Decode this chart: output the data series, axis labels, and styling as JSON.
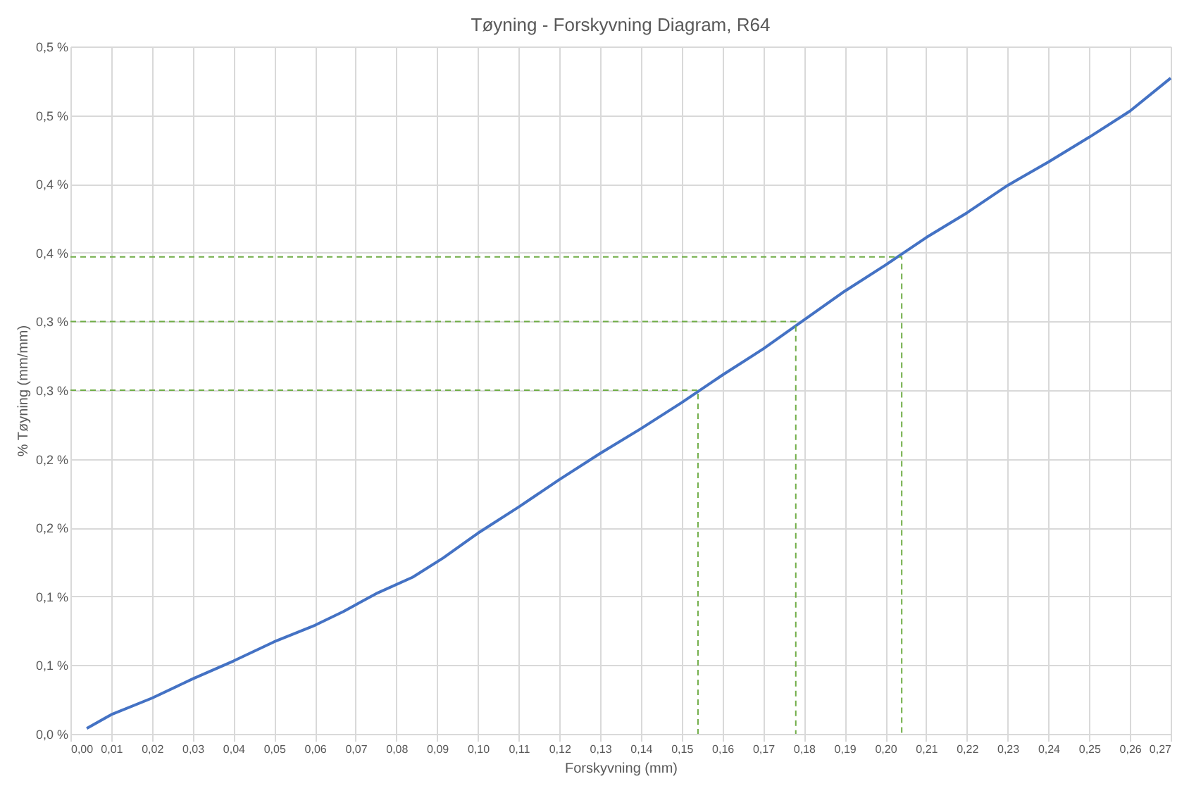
{
  "chart_data": {
    "type": "line",
    "title": "Tøyning - Forskyvning Diagram, R64",
    "xlabel": "Forskyvning (mm)",
    "ylabel": "% Tøyning (mm/mm)",
    "series": [
      {
        "color": "#4472c4",
        "x": [
          0.004,
          0.01,
          0.02,
          0.03,
          0.04,
          0.05,
          0.06,
          0.067,
          0.075,
          0.084,
          0.0915,
          0.1,
          0.11,
          0.12,
          0.13,
          0.14,
          0.15,
          0.16,
          0.17,
          0.18,
          0.19,
          0.2,
          0.21,
          0.22,
          0.23,
          0.24,
          0.25,
          0.26,
          0.27
        ],
        "values": [
          0.004,
          0.014,
          0.026,
          0.04,
          0.053,
          0.067,
          0.079,
          0.089,
          0.102,
          0.114,
          0.128,
          0.146,
          0.165,
          0.185,
          0.204,
          0.222,
          0.241,
          0.261,
          0.28,
          0.301,
          0.322,
          0.341,
          0.361,
          0.379,
          0.399,
          0.416,
          0.434,
          0.453,
          0.477
        ]
      },
      {
        "color": "#70ad47",
        "line_style": "dashed",
        "x": [
          0,
          0.154,
          0.154
        ],
        "values": [
          0.25,
          0.25,
          0
        ]
      },
      {
        "color": "#70ad47",
        "line_style": "dashed",
        "x": [
          0,
          0.178,
          0.178
        ],
        "values": [
          0.3,
          0.3,
          0
        ]
      },
      {
        "color": "#70ad47",
        "line_style": "dashed",
        "x": [
          0,
          0.204,
          0.204
        ],
        "values": [
          0.347,
          0.347,
          0
        ]
      }
    ],
    "xlim": [
      0,
      0.27
    ],
    "xticks": [
      {
        "value": 0,
        "label": "0,00"
      },
      {
        "value": 0.01,
        "label": "0,01"
      },
      {
        "value": 0.02,
        "label": "0,02"
      },
      {
        "value": 0.03,
        "label": "0,03"
      },
      {
        "value": 0.04,
        "label": "0,04"
      },
      {
        "value": 0.05,
        "label": "0,05"
      },
      {
        "value": 0.06,
        "label": "0,06"
      },
      {
        "value": 0.07,
        "label": "0,07"
      },
      {
        "value": 0.08,
        "label": "0,08"
      },
      {
        "value": 0.09,
        "label": "0,09"
      },
      {
        "value": 0.1,
        "label": "0,10"
      },
      {
        "value": 0.11,
        "label": "0,11"
      },
      {
        "value": 0.12,
        "label": "0,12"
      },
      {
        "value": 0.13,
        "label": "0,13"
      },
      {
        "value": 0.14,
        "label": "0,14"
      },
      {
        "value": 0.15,
        "label": "0,15"
      },
      {
        "value": 0.16,
        "label": "0,16"
      },
      {
        "value": 0.17,
        "label": "0,17"
      },
      {
        "value": 0.18,
        "label": "0,18"
      },
      {
        "value": 0.19,
        "label": "0,19"
      },
      {
        "value": 0.2,
        "label": "0,20"
      },
      {
        "value": 0.21,
        "label": "0,21"
      },
      {
        "value": 0.22,
        "label": "0,22"
      },
      {
        "value": 0.23,
        "label": "0,23"
      },
      {
        "value": 0.24,
        "label": "0,24"
      },
      {
        "value": 0.25,
        "label": "0,25"
      },
      {
        "value": 0.26,
        "label": "0,26"
      },
      {
        "value": 0.27,
        "label": "0,27"
      }
    ],
    "ylim": [
      0,
      0.5
    ],
    "yticks": [
      {
        "value": 0,
        "label": "0,0 %"
      },
      {
        "value": 0.05,
        "label": "0,1 %"
      },
      {
        "value": 0.1,
        "label": "0,1 %"
      },
      {
        "value": 0.15,
        "label": "0,2 %"
      },
      {
        "value": 0.2,
        "label": "0,2 %"
      },
      {
        "value": 0.25,
        "label": "0,3 %"
      },
      {
        "value": 0.3,
        "label": "0,3 %"
      },
      {
        "value": 0.35,
        "label": "0,4 %"
      },
      {
        "value": 0.4,
        "label": "0,4 %"
      },
      {
        "value": 0.45,
        "label": "0,5 %"
      },
      {
        "value": 0.5,
        "label": "0,5 %"
      }
    ],
    "grid": true,
    "marker": "none",
    "line_style": "solid"
  }
}
